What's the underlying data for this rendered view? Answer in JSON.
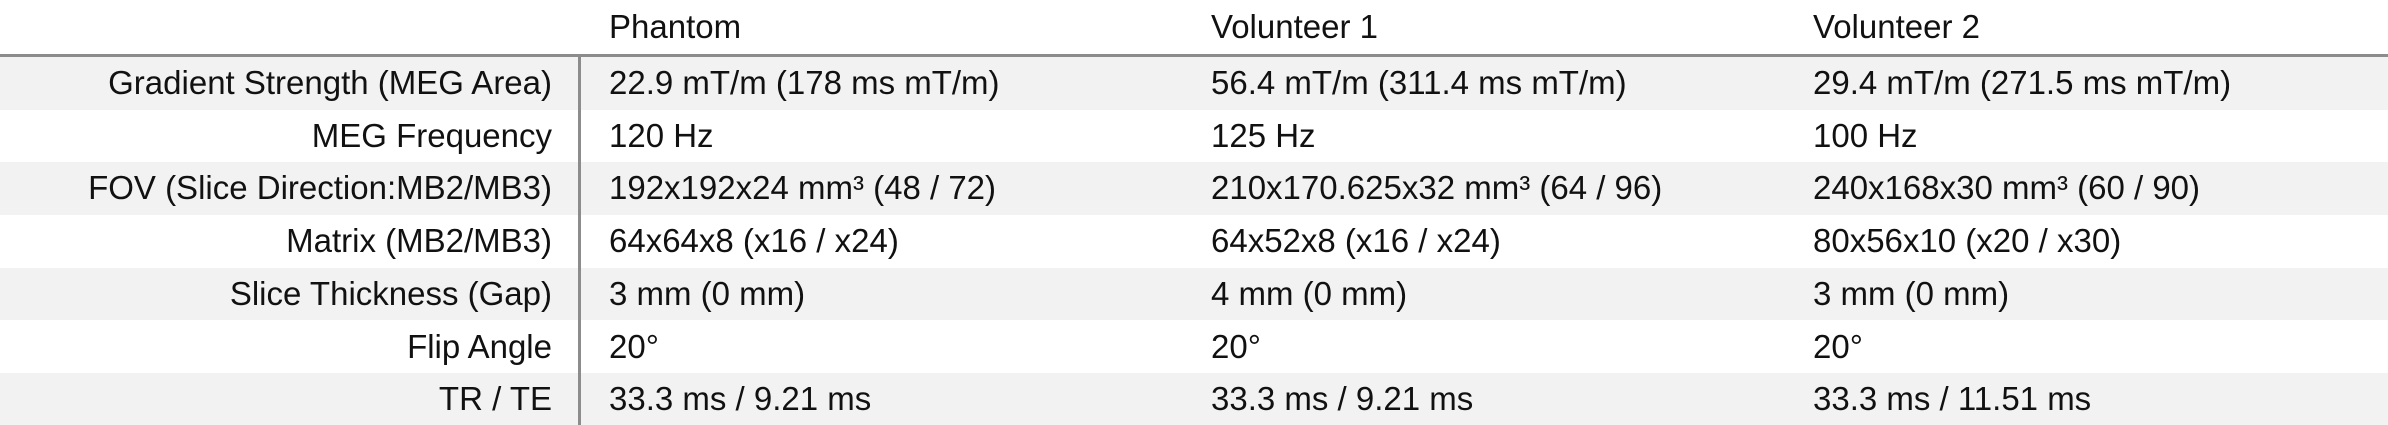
{
  "table": {
    "columns": [
      "Phantom",
      "Volunteer 1",
      "Volunteer 2"
    ],
    "rows": [
      {
        "label": "Gradient Strength (MEG Area)",
        "values": [
          "22.9 mT/m (178 ms mT/m)",
          "56.4 mT/m (311.4 ms mT/m)",
          "29.4 mT/m (271.5 ms mT/m)"
        ]
      },
      {
        "label": "MEG Frequency",
        "values": [
          "120 Hz",
          "125 Hz",
          "100 Hz"
        ]
      },
      {
        "label": "FOV (Slice Direction:MB2/MB3)",
        "values": [
          "192x192x24 mm³ (48 / 72)",
          "210x170.625x32 mm³ (64 / 96)",
          "240x168x30 mm³ (60 / 90)"
        ]
      },
      {
        "label": "Matrix (MB2/MB3)",
        "values": [
          "64x64x8 (x16 / x24)",
          "64x52x8 (x16 / x24)",
          "80x56x10 (x20 / x30)"
        ]
      },
      {
        "label": "Slice Thickness (Gap)",
        "values": [
          "3 mm (0 mm)",
          "4 mm (0 mm)",
          "3 mm (0 mm)"
        ]
      },
      {
        "label": "Flip Angle",
        "values": [
          "20°",
          "20°",
          "20°"
        ]
      },
      {
        "label": "TR / TE",
        "values": [
          "33.3 ms / 9.21 ms",
          "33.3 ms / 9.21 ms",
          "33.3 ms / 11.51 ms"
        ]
      }
    ]
  }
}
